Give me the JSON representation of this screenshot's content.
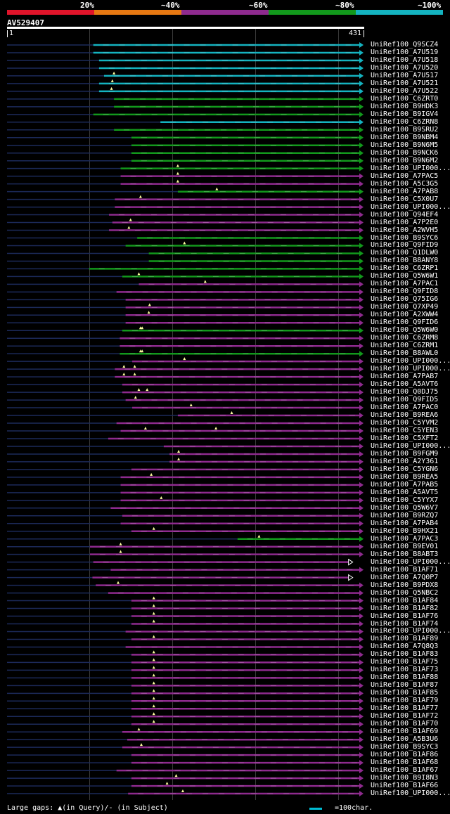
{
  "legend": {
    "colors": [
      "#e0142a",
      "#e67812",
      "#8e2a8e",
      "#12991c",
      "#14b3c0"
    ],
    "labels": [
      "20%",
      "~40%",
      "~60%",
      "~80%",
      "~100%"
    ]
  },
  "query": {
    "id": "AV529407",
    "start": "1",
    "end": "431",
    "length": 431
  },
  "footer": {
    "gaps_text": "Large gaps: ▲(in Query)/- (in Subject)",
    "scale_text": "=100char."
  },
  "hits": [
    {
      "name": "UniRef100_Q9SCZ4",
      "start": 105,
      "color": "#14b3c0",
      "arrow": "fill",
      "marks": []
    },
    {
      "name": "UniRef100_A7U519",
      "start": 105,
      "color": "#14b3c0",
      "arrow": "fill",
      "marks": []
    },
    {
      "name": "UniRef100_A7U518",
      "start": 112,
      "color": "#14b3c0",
      "arrow": "fill",
      "marks": []
    },
    {
      "name": "UniRef100_A7U520",
      "start": 112,
      "color": "#14b3c0",
      "arrow": "fill",
      "marks": []
    },
    {
      "name": "UniRef100_A7U517",
      "start": 118,
      "color": "#14b3c0",
      "arrow": "fill",
      "marks": [
        130
      ]
    },
    {
      "name": "UniRef100_A7U521",
      "start": 112,
      "color": "#14b3c0",
      "arrow": "fill",
      "marks": [
        128
      ]
    },
    {
      "name": "UniRef100_A7U522",
      "start": 112,
      "color": "#14b3c0",
      "arrow": "fill",
      "marks": [
        127
      ]
    },
    {
      "name": "UniRef100_C6ZRT0",
      "start": 130,
      "color": "#12991c",
      "arrow": "fill",
      "marks": []
    },
    {
      "name": "UniRef100_B9HDK3",
      "start": 130,
      "color": "#12991c",
      "arrow": "fill",
      "marks": []
    },
    {
      "name": "UniRef100_B9IGV4",
      "start": 105,
      "color": "#12991c",
      "arrow": "fill",
      "marks": []
    },
    {
      "name": "UniRef100_C6ZRN8",
      "start": 186,
      "color": "#14b3c0",
      "arrow": "fill",
      "marks": []
    },
    {
      "name": "UniRef100_B9SRU2",
      "start": 130,
      "color": "#12991c",
      "arrow": "fill",
      "marks": []
    },
    {
      "name": "UniRef100_B9NBM4",
      "start": 151,
      "color": "#12991c",
      "arrow": "fill",
      "marks": []
    },
    {
      "name": "UniRef100_B9N6M5",
      "start": 151,
      "color": "#12991c",
      "arrow": "fill",
      "marks": []
    },
    {
      "name": "UniRef100_B9NCK6",
      "start": 151,
      "color": "#12991c",
      "arrow": "fill",
      "marks": []
    },
    {
      "name": "UniRef100_B9N6M2",
      "start": 151,
      "color": "#12991c",
      "arrow": "fill",
      "marks": []
    },
    {
      "name": "UniRef100_UPI000...",
      "start": 138,
      "color": "#12991c",
      "arrow": "fill",
      "marks": [
        207
      ]
    },
    {
      "name": "UniRef100_A7PAC5",
      "start": 138,
      "color": "#8e2a8e",
      "arrow": "fill",
      "marks": [
        207
      ]
    },
    {
      "name": "UniRef100_A5C3G5",
      "start": 138,
      "color": "#8e2a8e",
      "arrow": "fill",
      "marks": [
        207
      ]
    },
    {
      "name": "UniRef100_A7PAB8",
      "start": 207,
      "color": "#12991c",
      "arrow": "fill",
      "marks": [
        254
      ]
    },
    {
      "name": "UniRef100_C5X0U7",
      "start": 131,
      "color": "#8e2a8e",
      "arrow": "fill",
      "marks": [
        162
      ]
    },
    {
      "name": "UniRef100_UPI000...",
      "start": 131,
      "color": "#8e2a8e",
      "arrow": "fill",
      "marks": []
    },
    {
      "name": "UniRef100_Q94EF4",
      "start": 124,
      "color": "#8e2a8e",
      "arrow": "fill",
      "marks": []
    },
    {
      "name": "UniRef100_A7P2E0",
      "start": 128,
      "color": "#8e2a8e",
      "arrow": "fill",
      "marks": [
        150
      ]
    },
    {
      "name": "UniRef100_A2WVH5",
      "start": 124,
      "color": "#8e2a8e",
      "arrow": "fill",
      "marks": [
        148
      ]
    },
    {
      "name": "UniRef100_B9SYC6",
      "start": 158,
      "color": "#12991c",
      "arrow": "fill",
      "marks": []
    },
    {
      "name": "UniRef100_Q9FID9",
      "start": 144,
      "color": "#12991c",
      "arrow": "fill",
      "marks": [
        215
      ]
    },
    {
      "name": "UniRef100_Q1DLW0",
      "start": 172,
      "color": "#12991c",
      "arrow": "fill",
      "marks": []
    },
    {
      "name": "UniRef100_B8ANY8",
      "start": 172,
      "color": "#12991c",
      "arrow": "fill",
      "marks": []
    },
    {
      "name": "UniRef100_C6ZRP1",
      "start": 100,
      "color": "#12991c",
      "arrow": "fill",
      "marks": []
    },
    {
      "name": "UniRef100_Q5W6W1",
      "start": 140,
      "color": "#12991c",
      "arrow": "fill",
      "marks": [
        160
      ]
    },
    {
      "name": "UniRef100_A7PAC1",
      "start": 160,
      "color": "#8e2a8e",
      "arrow": "fill",
      "marks": [
        240
      ]
    },
    {
      "name": "UniRef100_Q9FID8",
      "start": 133,
      "color": "#8e2a8e",
      "arrow": "fill",
      "marks": []
    },
    {
      "name": "UniRef100_Q75IG6",
      "start": 144,
      "color": "#8e2a8e",
      "arrow": "fill",
      "marks": []
    },
    {
      "name": "UniRef100_Q7XP49",
      "start": 144,
      "color": "#8e2a8e",
      "arrow": "fill",
      "marks": [
        173
      ]
    },
    {
      "name": "UniRef100_A2XWW4",
      "start": 144,
      "color": "#8e2a8e",
      "arrow": "fill",
      "marks": [
        172
      ]
    },
    {
      "name": "UniRef100_Q9FID6",
      "start": 144,
      "color": "#8e2a8e",
      "arrow": "fill",
      "marks": []
    },
    {
      "name": "UniRef100_Q5W6W0",
      "start": 140,
      "color": "#12991c",
      "arrow": "fill",
      "marks": [
        162,
        164
      ]
    },
    {
      "name": "UniRef100_C6ZRM8",
      "start": 137,
      "color": "#8e2a8e",
      "arrow": "fill",
      "marks": []
    },
    {
      "name": "UniRef100_C6ZRM1",
      "start": 137,
      "color": "#8e2a8e",
      "arrow": "fill",
      "marks": []
    },
    {
      "name": "UniRef100_B8AWL0",
      "start": 137,
      "color": "#12991c",
      "arrow": "fill",
      "marks": [
        162,
        164
      ]
    },
    {
      "name": "UniRef100_UPI000...",
      "start": 152,
      "color": "#8e2a8e",
      "arrow": "fill",
      "marks": [
        215
      ]
    },
    {
      "name": "UniRef100_UPI000...",
      "start": 131,
      "color": "#8e2a8e",
      "arrow": "fill",
      "marks": [
        142,
        155
      ]
    },
    {
      "name": "UniRef100_A7PAB7",
      "start": 131,
      "color": "#8e2a8e",
      "arrow": "fill",
      "marks": [
        142,
        155
      ]
    },
    {
      "name": "UniRef100_A5AVT6",
      "start": 140,
      "color": "#8e2a8e",
      "arrow": "fill",
      "marks": []
    },
    {
      "name": "UniRef100_Q0DJ75",
      "start": 140,
      "color": "#8e2a8e",
      "arrow": "fill",
      "marks": [
        160,
        170
      ]
    },
    {
      "name": "UniRef100_Q9FID5",
      "start": 144,
      "color": "#8e2a8e",
      "arrow": "fill",
      "marks": [
        156
      ]
    },
    {
      "name": "UniRef100_A7PAC0",
      "start": 152,
      "color": "#8e2a8e",
      "arrow": "fill",
      "marks": [
        223
      ]
    },
    {
      "name": "UniRef100_B9REA6",
      "start": 207,
      "color": "#8e2a8e",
      "arrow": "fill",
      "marks": [
        272
      ]
    },
    {
      "name": "UniRef100_C5YVM2",
      "start": 133,
      "color": "#8e2a8e",
      "arrow": "fill",
      "marks": []
    },
    {
      "name": "UniRef100_C5YEN3",
      "start": 138,
      "color": "#8e2a8e",
      "arrow": "fill",
      "marks": [
        168,
        253
      ]
    },
    {
      "name": "UniRef100_C5XFT2",
      "start": 123,
      "color": "#8e2a8e",
      "arrow": "fill",
      "marks": []
    },
    {
      "name": "UniRef100_UPI000...",
      "start": 190,
      "color": "#8e2a8e",
      "arrow": "fill",
      "marks": []
    },
    {
      "name": "UniRef100_B9FGM9",
      "start": 197,
      "color": "#8e2a8e",
      "arrow": "fill",
      "marks": [
        208
      ]
    },
    {
      "name": "UniRef100_A2Y361",
      "start": 197,
      "color": "#8e2a8e",
      "arrow": "fill",
      "marks": [
        208
      ]
    },
    {
      "name": "UniRef100_C5YGN6",
      "start": 151,
      "color": "#8e2a8e",
      "arrow": "fill",
      "marks": []
    },
    {
      "name": "UniRef100_B9REA5",
      "start": 138,
      "color": "#8e2a8e",
      "arrow": "fill",
      "marks": [
        175
      ]
    },
    {
      "name": "UniRef100_A7PAB5",
      "start": 138,
      "color": "#8e2a8e",
      "arrow": "fill",
      "marks": []
    },
    {
      "name": "UniRef100_A5AVT5",
      "start": 138,
      "color": "#8e2a8e",
      "arrow": "fill",
      "marks": []
    },
    {
      "name": "UniRef100_C5YYX7",
      "start": 138,
      "color": "#8e2a8e",
      "arrow": "fill",
      "marks": [
        187
      ]
    },
    {
      "name": "UniRef100_Q5W6V7",
      "start": 126,
      "color": "#8e2a8e",
      "arrow": "fill",
      "marks": []
    },
    {
      "name": "UniRef100_B9RZQ7",
      "start": 140,
      "color": "#8e2a8e",
      "arrow": "fill",
      "marks": []
    },
    {
      "name": "UniRef100_A7PAB4",
      "start": 138,
      "color": "#8e2a8e",
      "arrow": "fill",
      "marks": []
    },
    {
      "name": "UniRef100_B9HX21",
      "start": 151,
      "color": "#8e2a8e",
      "arrow": "fill",
      "marks": [
        178
      ]
    },
    {
      "name": "UniRef100_A7PAC3",
      "start": 279,
      "color": "#12991c",
      "arrow": "fill",
      "marks": [
        305
      ]
    },
    {
      "name": "UniRef100_B9EV01",
      "start": 101,
      "color": "#8e2a8e",
      "arrow": "fill",
      "marks": [
        138
      ]
    },
    {
      "name": "UniRef100_B8ABT3",
      "start": 101,
      "color": "#8e2a8e",
      "arrow": "fill",
      "marks": [
        138
      ]
    },
    {
      "name": "UniRef100_UPI000...",
      "start": 105,
      "color": "#8e2a8e",
      "arrow": "open",
      "end": 418,
      "marks": []
    },
    {
      "name": "UniRef100_B1AF71",
      "start": 126,
      "color": "#8e2a8e",
      "arrow": "fill",
      "marks": []
    },
    {
      "name": "UniRef100_A7Q0P7",
      "start": 104,
      "color": "#8e2a8e",
      "arrow": "open",
      "end": 418,
      "marks": []
    },
    {
      "name": "UniRef100_B9PDX8",
      "start": 108,
      "color": "#8e2a8e",
      "arrow": "fill",
      "marks": [
        135
      ]
    },
    {
      "name": "UniRef100_Q5NBC2",
      "start": 123,
      "color": "#8e2a8e",
      "arrow": "fill",
      "marks": []
    },
    {
      "name": "UniRef100_B1AF84",
      "start": 151,
      "color": "#8e2a8e",
      "arrow": "fill",
      "marks": [
        178
      ]
    },
    {
      "name": "UniRef100_B1AF82",
      "start": 151,
      "color": "#8e2a8e",
      "arrow": "fill",
      "marks": [
        178
      ]
    },
    {
      "name": "UniRef100_B1AF76",
      "start": 151,
      "color": "#8e2a8e",
      "arrow": "fill",
      "marks": [
        178
      ]
    },
    {
      "name": "UniRef100_B1AF74",
      "start": 151,
      "color": "#8e2a8e",
      "arrow": "fill",
      "marks": [
        178
      ]
    },
    {
      "name": "UniRef100_UPI000...",
      "start": 144,
      "color": "#8e2a8e",
      "arrow": "fill",
      "marks": []
    },
    {
      "name": "UniRef100_B1AF89",
      "start": 151,
      "color": "#8e2a8e",
      "arrow": "fill",
      "marks": [
        178
      ]
    },
    {
      "name": "UniRef100_A7Q8Q3",
      "start": 144,
      "color": "#8e2a8e",
      "arrow": "fill",
      "marks": []
    },
    {
      "name": "UniRef100_B1AF83",
      "start": 151,
      "color": "#8e2a8e",
      "arrow": "fill",
      "marks": [
        178
      ]
    },
    {
      "name": "UniRef100_B1AF75",
      "start": 151,
      "color": "#8e2a8e",
      "arrow": "fill",
      "marks": [
        178
      ]
    },
    {
      "name": "UniRef100_B1AF73",
      "start": 151,
      "color": "#8e2a8e",
      "arrow": "fill",
      "marks": [
        178
      ]
    },
    {
      "name": "UniRef100_B1AF88",
      "start": 151,
      "color": "#8e2a8e",
      "arrow": "fill",
      "marks": [
        178
      ]
    },
    {
      "name": "UniRef100_B1AF87",
      "start": 151,
      "color": "#8e2a8e",
      "arrow": "fill",
      "marks": [
        178
      ]
    },
    {
      "name": "UniRef100_B1AF85",
      "start": 151,
      "color": "#8e2a8e",
      "arrow": "fill",
      "marks": [
        178
      ]
    },
    {
      "name": "UniRef100_B1AF79",
      "start": 151,
      "color": "#8e2a8e",
      "arrow": "fill",
      "marks": [
        178
      ]
    },
    {
      "name": "UniRef100_B1AF77",
      "start": 151,
      "color": "#8e2a8e",
      "arrow": "fill",
      "marks": [
        178
      ]
    },
    {
      "name": "UniRef100_B1AF72",
      "start": 151,
      "color": "#8e2a8e",
      "arrow": "fill",
      "marks": [
        178
      ]
    },
    {
      "name": "UniRef100_B1AF70",
      "start": 151,
      "color": "#8e2a8e",
      "arrow": "fill",
      "marks": [
        178
      ]
    },
    {
      "name": "UniRef100_B1AF69",
      "start": 140,
      "color": "#8e2a8e",
      "arrow": "fill",
      "marks": [
        160
      ]
    },
    {
      "name": "UniRef100_A5B3U6",
      "start": 146,
      "color": "#8e2a8e",
      "arrow": "fill",
      "marks": []
    },
    {
      "name": "UniRef100_B9SYC3",
      "start": 140,
      "color": "#8e2a8e",
      "arrow": "fill",
      "marks": [
        163
      ]
    },
    {
      "name": "UniRef100_B1AF86",
      "start": 151,
      "color": "#8e2a8e",
      "arrow": "fill",
      "marks": []
    },
    {
      "name": "UniRef100_B1AF68",
      "start": 151,
      "color": "#8e2a8e",
      "arrow": "fill",
      "marks": []
    },
    {
      "name": "UniRef100_B1AF67",
      "start": 133,
      "color": "#8e2a8e",
      "arrow": "fill",
      "marks": []
    },
    {
      "name": "UniRef100_B9I8N3",
      "start": 151,
      "color": "#8e2a8e",
      "arrow": "fill",
      "marks": [
        205
      ]
    },
    {
      "name": "UniRef100_B1AF66",
      "start": 151,
      "color": "#8e2a8e",
      "arrow": "fill",
      "marks": [
        194
      ]
    },
    {
      "name": "UniRef100_UPI000...",
      "start": 147,
      "color": "#8e2a8e",
      "arrow": "fill",
      "marks": [
        213
      ]
    }
  ]
}
